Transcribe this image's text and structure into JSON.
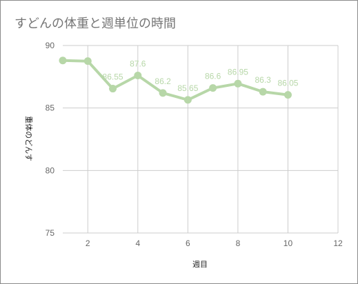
{
  "colors": {
    "series": "#b7d7a8",
    "grid": "#cccccc",
    "title": "#757575",
    "tick": "#666666"
  },
  "chart_data": {
    "type": "line",
    "title": "すどんの体重と週単位の時間",
    "xlabel": "週目",
    "ylabel": "重体のどんす",
    "xlim": [
      1,
      12
    ],
    "ylim": [
      75,
      90
    ],
    "xticks": [
      2,
      4,
      6,
      8,
      10,
      12
    ],
    "yticks": [
      75,
      80,
      85,
      90
    ],
    "grid": true,
    "legend": "none",
    "series": [
      {
        "x": [
          1,
          2,
          3,
          4,
          5,
          6,
          7,
          8,
          9,
          10
        ],
        "y": [
          88.8,
          88.75,
          86.55,
          87.6,
          86.2,
          85.65,
          86.6,
          86.95,
          86.3,
          86.05
        ],
        "labels": [
          "",
          "",
          "86.55",
          "87.6",
          "86.2",
          "85.65",
          "86.6",
          "86.95",
          "86.3",
          "86.05"
        ]
      }
    ]
  }
}
